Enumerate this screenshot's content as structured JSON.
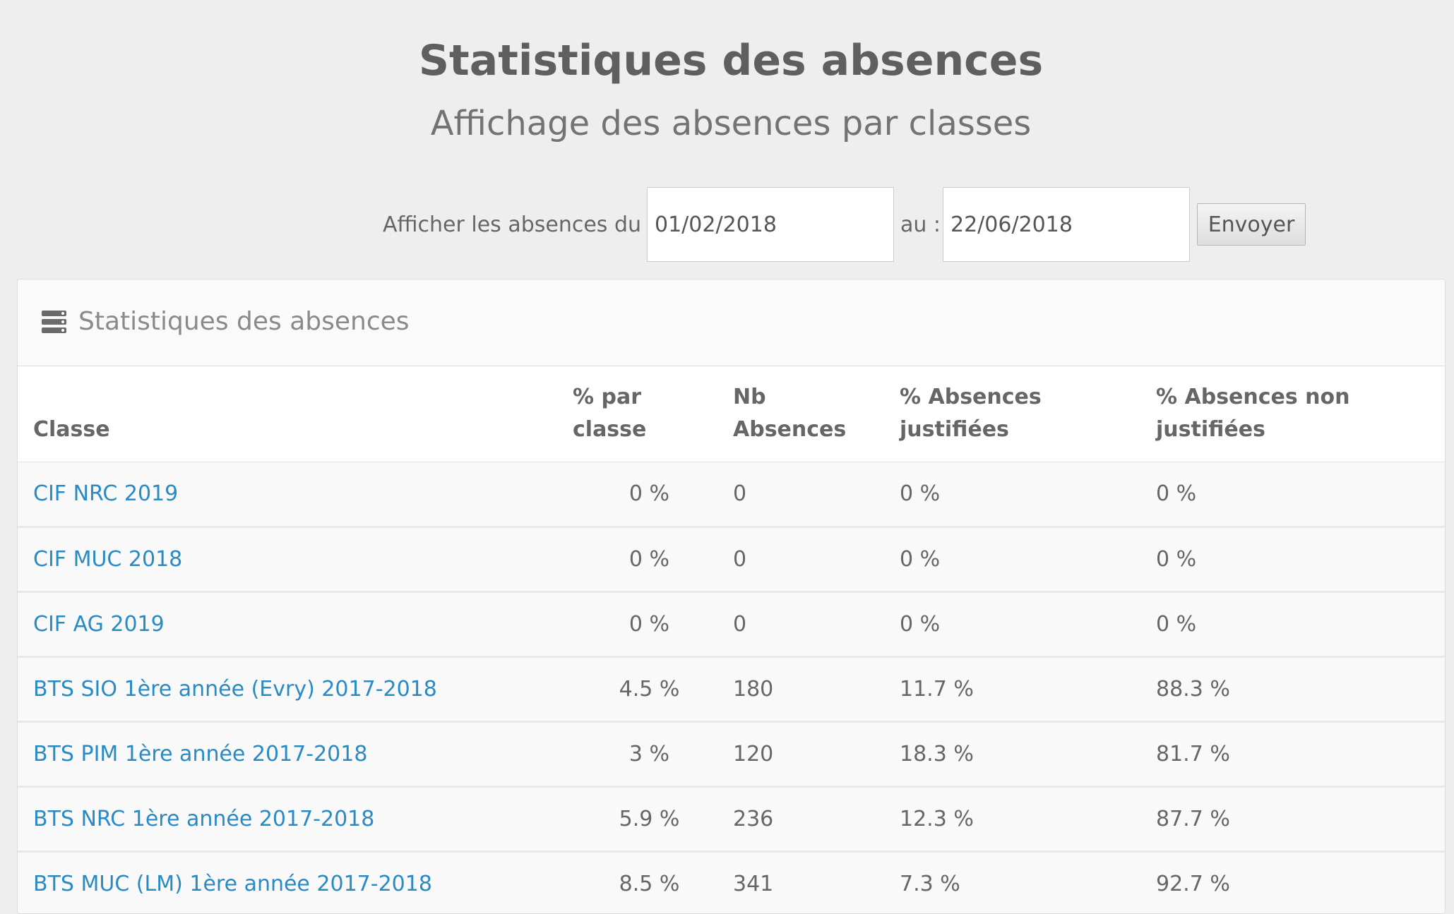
{
  "header": {
    "title": "Statistiques des absences",
    "subtitle": "Affichage des absences par classes"
  },
  "filter": {
    "from_label": "Afficher les absences du :",
    "from_value": "01/02/2018",
    "to_label": "au :",
    "to_value": "22/06/2018",
    "submit_label": "Envoyer"
  },
  "panel": {
    "title": "Statistiques des absences",
    "icon": "server-stack-icon"
  },
  "table": {
    "headers": {
      "classe": "Classe",
      "pct_classe_line1": "% par",
      "pct_classe_line2": "classe",
      "nb_line1": "Nb",
      "nb_line2": "Absences",
      "just_line1": "% Absences",
      "just_line2": "justifiées",
      "non_just": "% Absences non justifiées"
    },
    "rows": [
      {
        "classe": "CIF NRC 2019",
        "pct": "0 %",
        "nb": "0",
        "just": "0 %",
        "non_just": "0 %"
      },
      {
        "classe": "CIF MUC 2018",
        "pct": "0 %",
        "nb": "0",
        "just": "0 %",
        "non_just": "0 %"
      },
      {
        "classe": "CIF AG 2019",
        "pct": "0 %",
        "nb": "0",
        "just": "0 %",
        "non_just": "0 %"
      },
      {
        "classe": "BTS SIO 1ère année (Evry) 2017-2018",
        "pct": "4.5 %",
        "nb": "180",
        "just": "11.7 %",
        "non_just": "88.3 %"
      },
      {
        "classe": "BTS PIM 1ère année 2017-2018",
        "pct": "3 %",
        "nb": "120",
        "just": "18.3 %",
        "non_just": "81.7 %"
      },
      {
        "classe": "BTS NRC 1ère année 2017-2018",
        "pct": "5.9 %",
        "nb": "236",
        "just": "12.3 %",
        "non_just": "87.7 %"
      },
      {
        "classe": "BTS MUC (LM) 1ère année 2017-2018",
        "pct": "8.5 %",
        "nb": "341",
        "just": "7.3 %",
        "non_just": "92.7 %"
      }
    ]
  },
  "colors": {
    "background": "#eeeeee",
    "link": "#2a8bc4",
    "text": "#666666"
  }
}
